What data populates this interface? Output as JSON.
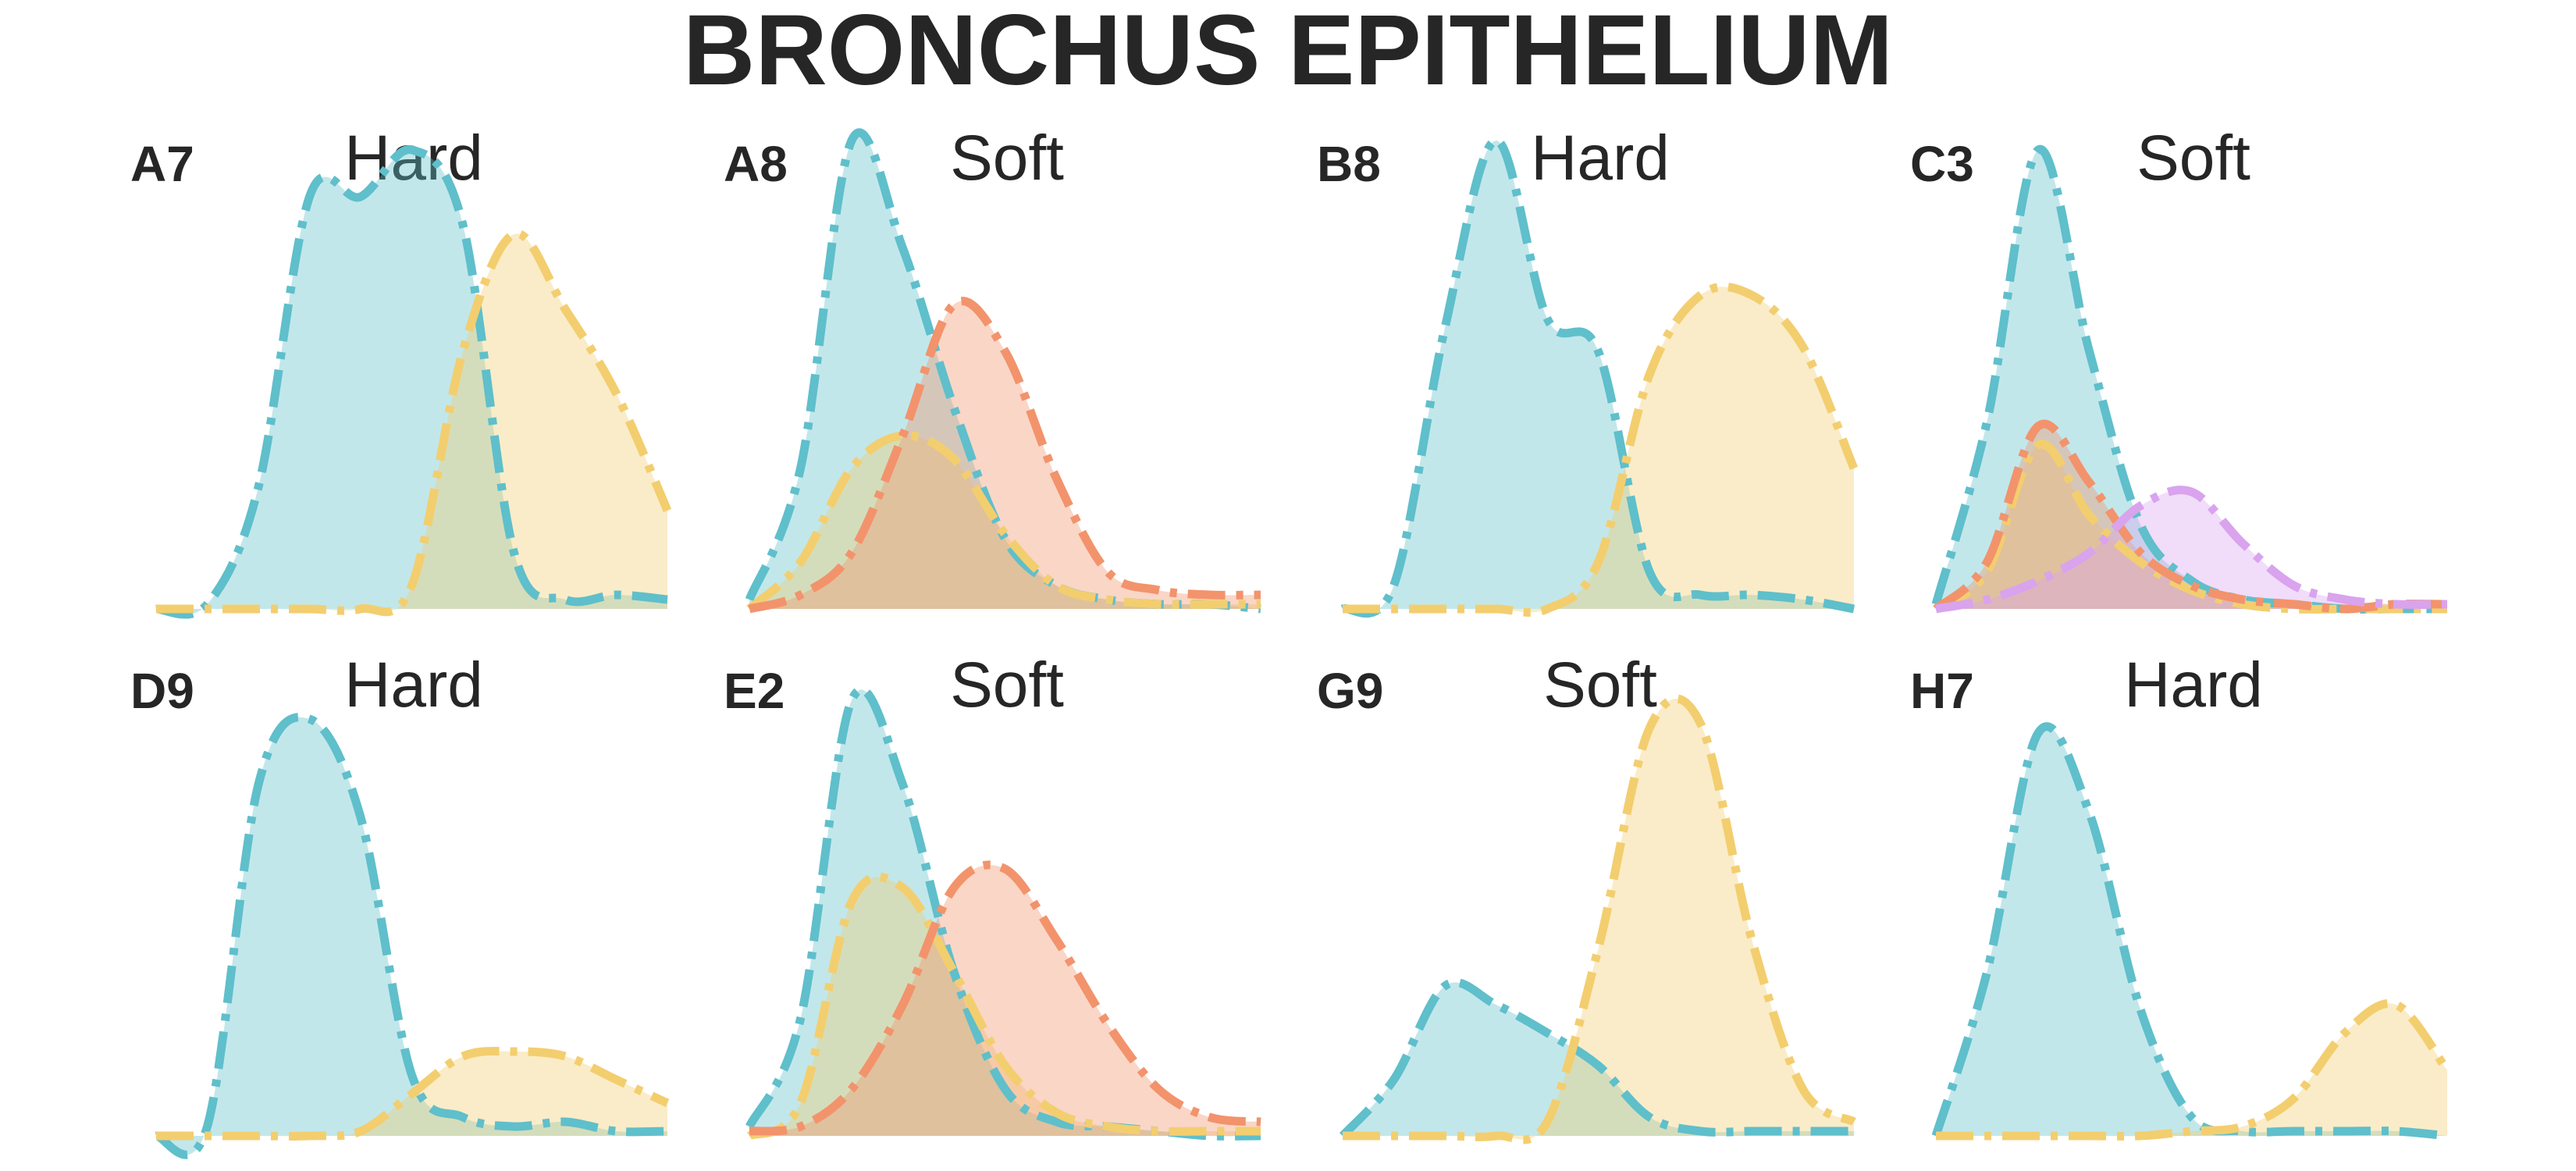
{
  "title": "BRONCHUS EPITHELIUM",
  "colors": {
    "teal": "#5fbfcb",
    "yellow": "#f3ce6f",
    "orange": "#f2936c",
    "violet": "#d9a3ee",
    "text": "#262626"
  },
  "chart_data": {
    "type": "area",
    "x": [
      0,
      0.1,
      0.2,
      0.3,
      0.4,
      0.5,
      0.6,
      0.7,
      0.8,
      0.9,
      1
    ],
    "grid": false,
    "panels": [
      {
        "id": "A7",
        "label": "Hard",
        "series": [
          {
            "color": "teal",
            "values": [
              0,
              0.01,
              0.26,
              0.88,
              0.88,
              0.98,
              0.82,
              0.12,
              0.02,
              0.03,
              0.02
            ]
          },
          {
            "color": "yellow",
            "values": [
              0,
              0,
              0,
              0,
              0,
              0.05,
              0.55,
              0.8,
              0.64,
              0.46,
              0.21
            ]
          }
        ]
      },
      {
        "id": "A8",
        "label": "Soft",
        "series": [
          {
            "color": "teal",
            "values": [
              0.02,
              0.3,
              1.0,
              0.77,
              0.43,
              0.15,
              0.05,
              0.02,
              0.01,
              0.01,
              0
            ]
          },
          {
            "color": "yellow",
            "values": [
              0,
              0.1,
              0.3,
              0.37,
              0.32,
              0.16,
              0.05,
              0.02,
              0.01,
              0.01,
              0.01
            ]
          },
          {
            "color": "orange",
            "values": [
              0,
              0.03,
              0.12,
              0.37,
              0.65,
              0.55,
              0.28,
              0.08,
              0.04,
              0.03,
              0.03
            ]
          }
        ]
      },
      {
        "id": "B8",
        "label": "Hard",
        "series": [
          {
            "color": "teal",
            "values": [
              0,
              0.05,
              0.6,
              1.0,
              0.62,
              0.55,
              0.08,
              0.03,
              0.03,
              0.02,
              0
            ]
          },
          {
            "color": "yellow",
            "values": [
              0,
              0,
              0,
              0,
              0,
              0.1,
              0.5,
              0.67,
              0.67,
              0.56,
              0.3
            ]
          }
        ]
      },
      {
        "id": "C3",
        "label": "Soft",
        "series": [
          {
            "color": "teal",
            "values": [
              0.01,
              0.4,
              0.98,
              0.55,
              0.18,
              0.06,
              0.02,
              0.01,
              0,
              0,
              0
            ]
          },
          {
            "color": "yellow",
            "values": [
              0,
              0.08,
              0.35,
              0.2,
              0.1,
              0.04,
              0.01,
              0,
              0,
              0,
              0
            ]
          },
          {
            "color": "orange",
            "values": [
              0,
              0.1,
              0.39,
              0.27,
              0.12,
              0.05,
              0.02,
              0.01,
              0,
              0.01,
              0.01
            ]
          },
          {
            "color": "violet",
            "values": [
              0,
              0.02,
              0.06,
              0.12,
              0.22,
              0.25,
              0.14,
              0.05,
              0.02,
              0.01,
              0.01
            ]
          }
        ]
      },
      {
        "id": "D9",
        "label": "Hard",
        "series": [
          {
            "color": "teal",
            "values": [
              0,
              0.02,
              0.75,
              0.89,
              0.68,
              0.13,
              0.04,
              0.02,
              0.03,
              0.01,
              0.01
            ]
          },
          {
            "color": "yellow",
            "values": [
              0,
              0,
              0,
              0,
              0.01,
              0.09,
              0.17,
              0.18,
              0.17,
              0.12,
              0.07
            ]
          }
        ]
      },
      {
        "id": "E2",
        "label": "Soft",
        "series": [
          {
            "color": "teal",
            "values": [
              0.02,
              0.25,
              0.93,
              0.75,
              0.35,
              0.1,
              0.03,
              0.02,
              0.01,
              0,
              0
            ]
          },
          {
            "color": "yellow",
            "values": [
              0,
              0.07,
              0.5,
              0.53,
              0.35,
              0.15,
              0.05,
              0.02,
              0.01,
              0.01,
              0.01
            ]
          },
          {
            "color": "orange",
            "values": [
              0.01,
              0.02,
              0.1,
              0.28,
              0.53,
              0.57,
              0.42,
              0.24,
              0.1,
              0.04,
              0.03
            ]
          }
        ]
      },
      {
        "id": "G9",
        "label": "Soft",
        "series": [
          {
            "color": "teal",
            "values": [
              0,
              0.12,
              0.32,
              0.28,
              0.22,
              0.15,
              0.04,
              0.01,
              0.01,
              0.01,
              0.01
            ]
          },
          {
            "color": "yellow",
            "values": [
              0,
              0,
              0,
              0,
              0.03,
              0.4,
              0.87,
              0.88,
              0.42,
              0.1,
              0.03
            ]
          }
        ]
      },
      {
        "id": "H7",
        "label": "Hard",
        "series": [
          {
            "color": "teal",
            "values": [
              0,
              0.35,
              0.86,
              0.69,
              0.27,
              0.04,
              0.01,
              0.01,
              0.01,
              0.01,
              0
            ]
          },
          {
            "color": "yellow",
            "values": [
              0,
              0,
              0,
              0,
              0,
              0.01,
              0.02,
              0.08,
              0.22,
              0.28,
              0.14
            ]
          }
        ]
      }
    ]
  }
}
